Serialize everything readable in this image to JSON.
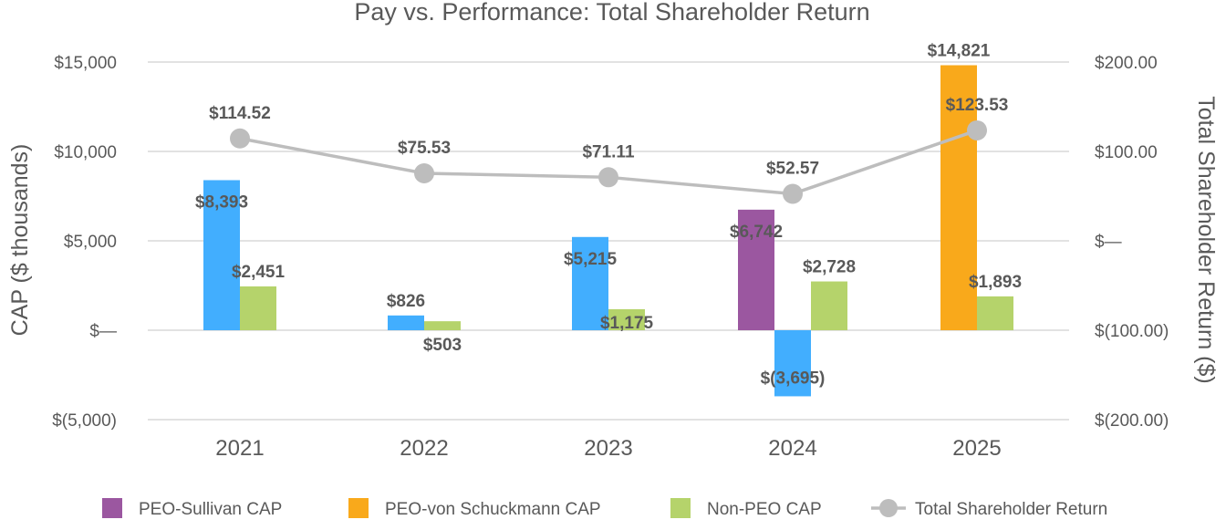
{
  "chart_data": {
    "type": "bar",
    "title": "Pay vs. Performance: Total Shareholder Return",
    "categories": [
      "2021",
      "2022",
      "2023",
      "2024",
      "2025"
    ],
    "y_left": {
      "label": "CAP ($ thousands)",
      "range": [
        -5000,
        15000
      ],
      "ticks": [
        15000,
        10000,
        5000,
        0,
        -5000
      ],
      "tick_labels": [
        "$15,000",
        "$10,000",
        "$5,000",
        "$—",
        "$(5,000)"
      ]
    },
    "y_right": {
      "label": "Total Shareholder Return ($)",
      "range": [
        -200,
        200
      ],
      "ticks": [
        200,
        100,
        0,
        -100,
        -200
      ],
      "tick_labels": [
        "$200.00",
        "$100.00",
        "$—",
        "$(100.00)",
        "$(200.00)"
      ]
    },
    "grid": true,
    "legend_position": "bottom",
    "series": [
      {
        "name": "PEO-Sullivan CAP",
        "type": "bar",
        "axis": "left",
        "color": "#9b57a0",
        "values": [
          8393,
          826,
          5215,
          6742,
          null
        ],
        "labels": [
          "$8,393",
          "$826",
          "$5,215",
          "$6,742",
          ""
        ]
      },
      {
        "name": "PEO-von Schuckmann CAP",
        "type": "bar",
        "axis": "left",
        "color": "#f9a91b",
        "values": [
          null,
          null,
          null,
          -3695,
          14821
        ],
        "labels": [
          "",
          "",
          "",
          "$(3,695)",
          "$14,821"
        ]
      },
      {
        "name": "Non-PEO CAP",
        "type": "bar",
        "axis": "left",
        "color": "#b5d36b",
        "values": [
          2451,
          503,
          1175,
          2728,
          1893
        ],
        "labels": [
          "$2,451",
          "$503",
          "$1,175",
          "$2,728",
          "$1,893"
        ]
      },
      {
        "name": "Total Shareholder Return",
        "type": "line",
        "axis": "right",
        "color": "#bdbdbd",
        "values": [
          114.52,
          75.53,
          71.11,
          52.57,
          123.53
        ],
        "labels": [
          "$114.52",
          "$75.53",
          "$71.11",
          "$52.57",
          "$123.53"
        ]
      }
    ],
    "bar_colors_by_category": [
      [
        "#42aefe",
        null,
        "#b5d36b"
      ],
      [
        "#42aefe",
        null,
        "#b5d36b"
      ],
      [
        "#42aefe",
        null,
        "#b5d36b"
      ],
      [
        "#9b57a0",
        "#42aefe",
        "#b5d36b"
      ],
      [
        null,
        "#f9a91b",
        "#b5d36b"
      ]
    ]
  }
}
